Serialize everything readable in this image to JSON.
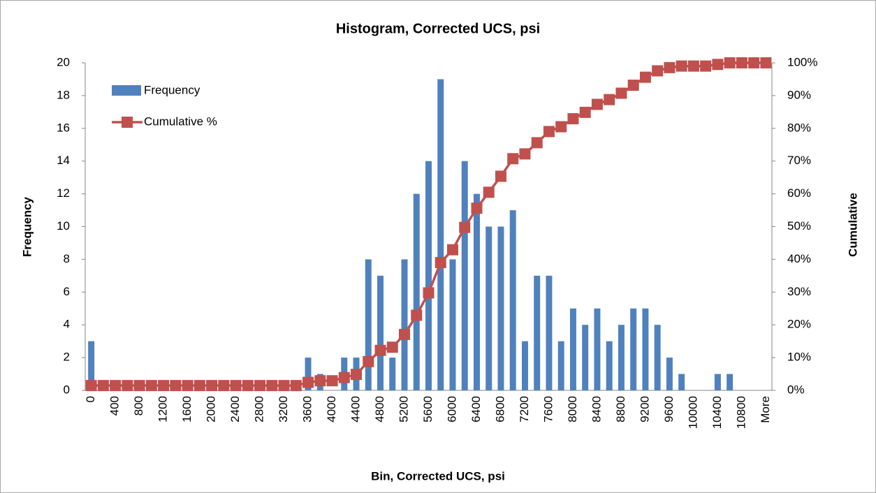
{
  "chart_data": {
    "type": "histogram",
    "title": "Histogram, Corrected UCS, psi",
    "x_label": "Bin, Corrected UCS, psi",
    "y_label": "Frequency",
    "y2_label": "Cumulative",
    "categories": [
      0,
      null,
      400,
      null,
      800,
      null,
      1200,
      null,
      1600,
      null,
      2000,
      null,
      2400,
      null,
      2800,
      null,
      3200,
      null,
      3600,
      null,
      4000,
      null,
      4400,
      null,
      4800,
      null,
      5200,
      null,
      5600,
      null,
      6000,
      null,
      6400,
      null,
      6800,
      null,
      7200,
      null,
      7600,
      null,
      8000,
      null,
      8400,
      null,
      8800,
      null,
      9200,
      null,
      9600,
      null,
      10000,
      null,
      10400,
      null,
      10800,
      null,
      "More"
    ],
    "series": [
      {
        "name": "Frequency",
        "color": "#4f81bd",
        "values": [
          3,
          0,
          0,
          0,
          0,
          0,
          0,
          0,
          0,
          0,
          0,
          0,
          0,
          0,
          0,
          0,
          0,
          0,
          2,
          1,
          0,
          2,
          2,
          8,
          7,
          2,
          8,
          12,
          14,
          19,
          8,
          14,
          12,
          10,
          10,
          11,
          3,
          7,
          7,
          3,
          5,
          4,
          5,
          3,
          4,
          5,
          5,
          4,
          2,
          1,
          0,
          0,
          1,
          1,
          0,
          0,
          0
        ]
      },
      {
        "name": "Cumulative %",
        "color": "#c0504d",
        "axis": "y2",
        "values": [
          1.46,
          1.46,
          1.46,
          1.46,
          1.46,
          1.46,
          1.46,
          1.46,
          1.46,
          1.46,
          1.46,
          1.46,
          1.46,
          1.46,
          1.46,
          1.46,
          1.46,
          1.46,
          2.44,
          2.93,
          2.93,
          3.9,
          4.88,
          8.78,
          12.2,
          13.17,
          17.07,
          22.93,
          29.76,
          39.02,
          42.93,
          49.76,
          55.61,
          60.49,
          65.37,
          70.73,
          72.2,
          75.61,
          79.02,
          80.49,
          82.93,
          84.88,
          87.32,
          88.78,
          90.73,
          93.17,
          95.61,
          97.56,
          98.54,
          99.02,
          99.02,
          99.02,
          99.51,
          100,
          100,
          100,
          100
        ]
      }
    ],
    "ylim": [
      0,
      20
    ],
    "yticks": [
      0,
      2,
      4,
      6,
      8,
      10,
      12,
      14,
      16,
      18,
      20
    ],
    "y2lim": [
      0,
      100
    ],
    "y2ticks": [
      {
        "value": 0,
        "label": "0%"
      },
      {
        "value": 10,
        "label": "10%"
      },
      {
        "value": 20,
        "label": "20%"
      },
      {
        "value": 30,
        "label": "30%"
      },
      {
        "value": 40,
        "label": "40%"
      },
      {
        "value": 50,
        "label": "50%"
      },
      {
        "value": 60,
        "label": "60%"
      },
      {
        "value": 70,
        "label": "70%"
      },
      {
        "value": 80,
        "label": "80%"
      },
      {
        "value": 90,
        "label": "90%"
      },
      {
        "value": 100,
        "label": "100%"
      }
    ],
    "legend": "top-left"
  }
}
